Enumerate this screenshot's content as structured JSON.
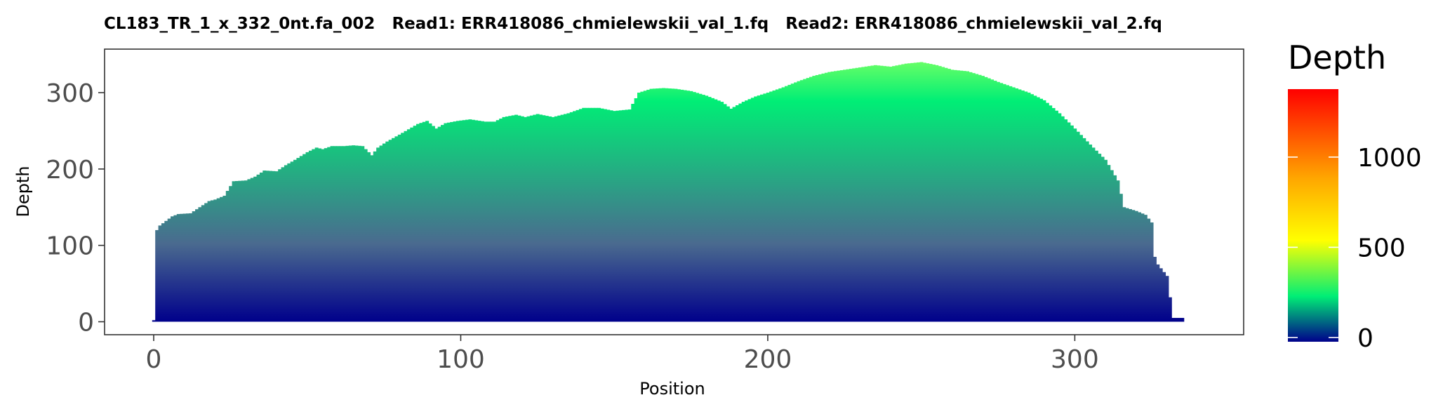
{
  "chart_data": {
    "type": "bar",
    "title": "CL183_TR_1_x_332_0nt.fa_002   Read1: ERR418086_chmielewskii_val_1.fq   Read2: ERR418086_chmielewskii_val_2.fq",
    "xlabel": "Position",
    "ylabel": "Depth",
    "xlim": [
      -16,
      355
    ],
    "ylim": [
      -17,
      357
    ],
    "xticks": [
      0,
      100,
      200,
      300
    ],
    "yticks": [
      0,
      100,
      200,
      300
    ],
    "grid": false,
    "legend": {
      "title": "Depth",
      "placement": "right",
      "ticks": [
        0,
        500,
        1000
      ],
      "range": [
        0,
        1400
      ],
      "colors": [
        "#00008b",
        "#00ee76",
        "#ffff00",
        "#ffa500",
        "#ff0000"
      ]
    },
    "anchors": [
      [
        0,
        2
      ],
      [
        0.3,
        103
      ],
      [
        1,
        120
      ],
      [
        2,
        126
      ],
      [
        4,
        132
      ],
      [
        6,
        138
      ],
      [
        8,
        141
      ],
      [
        12,
        142
      ],
      [
        15,
        150
      ],
      [
        18,
        158
      ],
      [
        20,
        160
      ],
      [
        23,
        165
      ],
      [
        26,
        184
      ],
      [
        30,
        185
      ],
      [
        33,
        190
      ],
      [
        36,
        198
      ],
      [
        40,
        197
      ],
      [
        43,
        205
      ],
      [
        46,
        212
      ],
      [
        50,
        222
      ],
      [
        53,
        228
      ],
      [
        55,
        226
      ],
      [
        58,
        230
      ],
      [
        62,
        230
      ],
      [
        65,
        231
      ],
      [
        68,
        230
      ],
      [
        71,
        218
      ],
      [
        73,
        228
      ],
      [
        76,
        236
      ],
      [
        80,
        245
      ],
      [
        83,
        252
      ],
      [
        86,
        259
      ],
      [
        89,
        263
      ],
      [
        92,
        253
      ],
      [
        95,
        260
      ],
      [
        99,
        263
      ],
      [
        103,
        265
      ],
      [
        108,
        262
      ],
      [
        111,
        262
      ],
      [
        114,
        268
      ],
      [
        118,
        271
      ],
      [
        121,
        268
      ],
      [
        125,
        272
      ],
      [
        130,
        268
      ],
      [
        135,
        273
      ],
      [
        140,
        280
      ],
      [
        145,
        280
      ],
      [
        150,
        276
      ],
      [
        155,
        278
      ],
      [
        158,
        300
      ],
      [
        162,
        305
      ],
      [
        166,
        306
      ],
      [
        170,
        305
      ],
      [
        175,
        302
      ],
      [
        180,
        296
      ],
      [
        185,
        288
      ],
      [
        188,
        279
      ],
      [
        192,
        288
      ],
      [
        196,
        295
      ],
      [
        200,
        300
      ],
      [
        205,
        307
      ],
      [
        210,
        315
      ],
      [
        215,
        322
      ],
      [
        220,
        327
      ],
      [
        225,
        330
      ],
      [
        230,
        333
      ],
      [
        235,
        336
      ],
      [
        240,
        334
      ],
      [
        245,
        338
      ],
      [
        250,
        340
      ],
      [
        255,
        336
      ],
      [
        260,
        330
      ],
      [
        265,
        328
      ],
      [
        270,
        322
      ],
      [
        275,
        314
      ],
      [
        280,
        307
      ],
      [
        285,
        300
      ],
      [
        290,
        290
      ],
      [
        295,
        273
      ],
      [
        300,
        253
      ],
      [
        305,
        232
      ],
      [
        310,
        212
      ],
      [
        314,
        185
      ],
      [
        316,
        150
      ],
      [
        320,
        145
      ],
      [
        323,
        140
      ],
      [
        325,
        130
      ],
      [
        325.5,
        90
      ],
      [
        327,
        75
      ],
      [
        330,
        60
      ],
      [
        331,
        32
      ],
      [
        332,
        5
      ],
      [
        335,
        5
      ]
    ]
  }
}
